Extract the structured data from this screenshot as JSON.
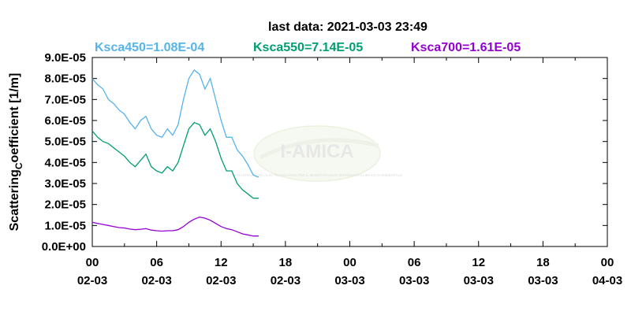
{
  "chart_data": {
    "type": "line",
    "title": "last data: 2021-03-03 23:49",
    "ylabel_main": "Scattering",
    "ylabel_sub": "C",
    "ylabel_rest": "oefficient [1/m]",
    "ylim": [
      0,
      9e-05
    ],
    "y_ticks": [
      0,
      1e-05,
      2e-05,
      3e-05,
      4e-05,
      5e-05,
      6e-05,
      7e-05,
      8e-05,
      9e-05
    ],
    "y_tick_labels": [
      "0.0E+00",
      "1.0E-05",
      "2.0E-05",
      "3.0E-05",
      "4.0E-05",
      "5.0E-05",
      "6.0E-05",
      "7.0E-05",
      "8.0E-05",
      "9.0E-05"
    ],
    "xlim_hours": [
      0,
      48
    ],
    "x_ticks": [
      0,
      6,
      12,
      18,
      24,
      30,
      36,
      42,
      48
    ],
    "x_tick_labels_time": [
      "00",
      "06",
      "12",
      "18",
      "00",
      "06",
      "12",
      "18",
      "00"
    ],
    "x_tick_labels_date": [
      "02-03",
      "02-03",
      "02-03",
      "02-03",
      "03-03",
      "03-03",
      "03-03",
      "03-03",
      "04-03"
    ],
    "grid": false,
    "legend_placement": "top",
    "series": [
      {
        "name": "Ksca450=1.08E-04",
        "color": "#56b4e9",
        "x": [
          0,
          0.5,
          1,
          1.5,
          2,
          2.5,
          3,
          3.5,
          4,
          4.5,
          5,
          5.5,
          6,
          6.5,
          7,
          7.5,
          8,
          8.5,
          9,
          9.5,
          10,
          10.5,
          11,
          11.5,
          12,
          12.5,
          13,
          13.5,
          14,
          14.5,
          15,
          15.5
        ],
        "y": [
          8e-05,
          7.7e-05,
          7.5e-05,
          7e-05,
          6.8e-05,
          6.5e-05,
          6.3e-05,
          5.9e-05,
          5.6e-05,
          6e-05,
          6.2e-05,
          5.6e-05,
          5.3e-05,
          5.2e-05,
          5.6e-05,
          5.3e-05,
          5.8e-05,
          7e-05,
          8e-05,
          8.4e-05,
          8.2e-05,
          7.5e-05,
          8e-05,
          7e-05,
          6e-05,
          5.2e-05,
          5.2e-05,
          4.6e-05,
          4.3e-05,
          3.9e-05,
          3.4e-05,
          3.3e-05
        ]
      },
      {
        "name": "Ksca550=7.14E-05",
        "color": "#009e73",
        "x": [
          0,
          0.5,
          1,
          1.5,
          2,
          2.5,
          3,
          3.5,
          4,
          4.5,
          5,
          5.5,
          6,
          6.5,
          7,
          7.5,
          8,
          8.5,
          9,
          9.5,
          10,
          10.5,
          11,
          11.5,
          12,
          12.5,
          13,
          13.5,
          14,
          14.5,
          15,
          15.5
        ],
        "y": [
          5.5e-05,
          5.2e-05,
          5e-05,
          4.9e-05,
          4.7e-05,
          4.5e-05,
          4.3e-05,
          4e-05,
          3.8e-05,
          4.1e-05,
          4.4e-05,
          3.8e-05,
          3.6e-05,
          3.5e-05,
          3.8e-05,
          3.6e-05,
          4e-05,
          4.8e-05,
          5.6e-05,
          5.9e-05,
          5.8e-05,
          5.3e-05,
          5.6e-05,
          5e-05,
          4.2e-05,
          3.6e-05,
          3.6e-05,
          3e-05,
          2.7e-05,
          2.5e-05,
          2.3e-05,
          2.3e-05
        ]
      },
      {
        "name": "Ksca700=1.61E-05",
        "color": "#9400d3",
        "x": [
          0,
          0.5,
          1,
          1.5,
          2,
          2.5,
          3,
          3.5,
          4,
          4.5,
          5,
          5.5,
          6,
          6.5,
          7,
          7.5,
          8,
          8.5,
          9,
          9.5,
          10,
          10.5,
          11,
          11.5,
          12,
          12.5,
          13,
          13.5,
          14,
          14.5,
          15,
          15.5
        ],
        "y": [
          1.15e-05,
          1.1e-05,
          1.05e-05,
          1e-05,
          9.5e-06,
          9e-06,
          8.8e-06,
          8.3e-06,
          8e-06,
          8.2e-06,
          8.5e-06,
          7.8e-06,
          7.5e-06,
          7.3e-06,
          7.5e-06,
          7.5e-06,
          8e-06,
          9.5e-06,
          1.15e-05,
          1.3e-05,
          1.4e-05,
          1.35e-05,
          1.25e-05,
          1.1e-05,
          9.5e-06,
          8.5e-06,
          8e-06,
          7e-06,
          6e-06,
          5.5e-06,
          5e-06,
          5e-06
        ]
      }
    ]
  },
  "watermark": {
    "text": "I-AMICA",
    "caption": "INFRASTRUTTURA ALTA TECNOLOGIA PER IL MONITORAGGIO INTEGRATO CLIMATICO AMBIENTALE"
  }
}
